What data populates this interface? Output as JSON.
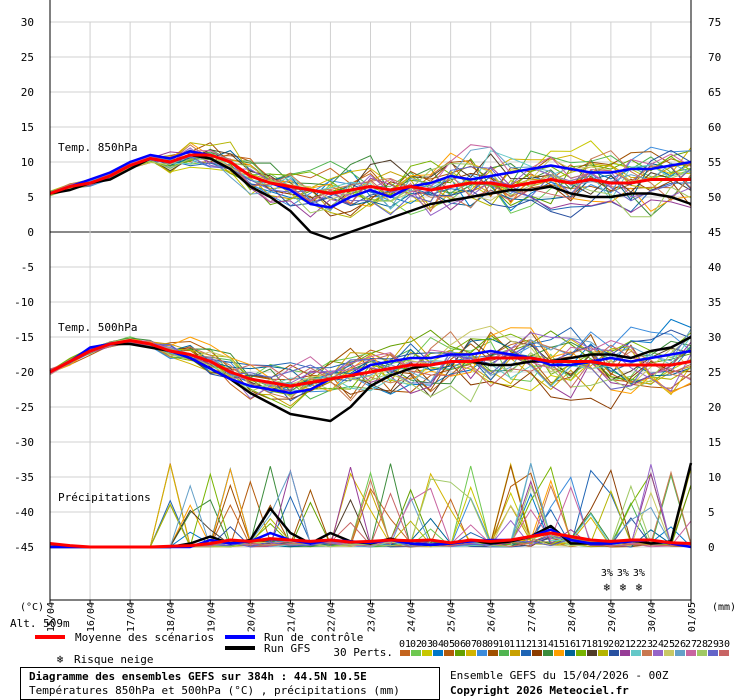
{
  "chart_data": {
    "type": "line",
    "title": "Diagramme des ensembles GEFS sur 384h : 44.5N 10.5E",
    "subtitle": "Températures 850hPa et 500hPa (°C) , précipitations (mm)",
    "left_axis_label": "(°C)",
    "right_axis_label": "(mm)",
    "altitude_label": "Alt. 509m",
    "left_ticks": [
      30,
      25,
      20,
      15,
      10,
      5,
      0,
      -5,
      -10,
      -15,
      -20,
      -25,
      -30,
      -35,
      -40,
      -45
    ],
    "right_ticks": [
      75,
      70,
      65,
      60,
      55,
      50,
      45,
      40,
      35,
      30,
      25,
      20,
      15,
      10,
      5,
      0
    ],
    "ylim": [
      -45,
      30
    ],
    "grid": true,
    "x_ticks": [
      "16/04",
      "17/04",
      "18/04",
      "19/04",
      "20/04",
      "21/04",
      "22/04",
      "23/04",
      "24/04",
      "25/04",
      "26/04",
      "27/04",
      "28/04",
      "29/04",
      "30/04",
      "01/05"
    ],
    "x_start_label": "15/04",
    "panel_labels": {
      "t850": "Temp. 850hPa",
      "t500": "Temp. 500hPa",
      "precip": "Précipitations"
    },
    "series": [
      {
        "name": "Moyenne des scénarios",
        "color": "#ff0000",
        "t850": [
          5.5,
          6.5,
          7.0,
          8.0,
          9.5,
          10.5,
          10.0,
          11.0,
          11.0,
          10.0,
          8.0,
          7.0,
          6.5,
          6.0,
          5.5,
          6.0,
          6.5,
          6.0,
          6.5,
          6.0,
          6.5,
          7.0,
          7.0,
          6.5,
          7.0,
          7.5,
          7.0,
          7.5,
          7.0,
          7.0,
          7.5,
          7.5,
          7.5
        ],
        "t500": [
          -20.0,
          -18.5,
          -17.0,
          -16.0,
          -15.5,
          -16.0,
          -17.0,
          -17.5,
          -18.5,
          -20.0,
          -21.0,
          -21.5,
          -22.0,
          -21.5,
          -21.0,
          -20.5,
          -20.0,
          -19.5,
          -19.0,
          -19.0,
          -18.5,
          -18.5,
          -18.0,
          -18.0,
          -18.0,
          -18.5,
          -18.5,
          -18.5,
          -19.0,
          -19.0,
          -19.0,
          -19.0,
          -18.5
        ],
        "precip": [
          0.5,
          0.2,
          0.0,
          0.0,
          0.0,
          0.0,
          0.1,
          0.2,
          0.5,
          1.0,
          0.8,
          1.2,
          1.0,
          0.8,
          1.0,
          0.7,
          0.8,
          1.0,
          0.9,
          1.0,
          0.6,
          1.0,
          0.8,
          1.0,
          1.5,
          2.0,
          1.5,
          1.0,
          0.8,
          1.0,
          1.0,
          0.6,
          0.5
        ]
      },
      {
        "name": "Run de contrôle",
        "color": "#0000ff",
        "t850": [
          5.5,
          6.5,
          7.5,
          8.5,
          10.0,
          11.0,
          10.5,
          11.5,
          11.0,
          10.0,
          8.0,
          7.0,
          6.0,
          4.0,
          3.5,
          5.0,
          6.0,
          5.0,
          6.5,
          7.0,
          8.0,
          7.5,
          8.0,
          8.5,
          9.0,
          9.5,
          9.0,
          8.5,
          8.5,
          9.0,
          9.0,
          9.5,
          10.0
        ],
        "t500": [
          -20.0,
          -18.5,
          -16.5,
          -16.0,
          -15.5,
          -16.0,
          -17.0,
          -18.0,
          -19.5,
          -21.0,
          -22.0,
          -22.5,
          -23.0,
          -22.5,
          -21.0,
          -20.5,
          -19.0,
          -18.5,
          -18.0,
          -18.0,
          -17.5,
          -17.5,
          -17.0,
          -17.5,
          -18.0,
          -19.0,
          -19.0,
          -18.5,
          -18.0,
          -18.5,
          -18.0,
          -17.5,
          -17.0
        ],
        "precip": [
          0.0,
          0.0,
          0.0,
          0.0,
          0.0,
          0.0,
          0.0,
          0.0,
          1.0,
          0.5,
          0.8,
          2.0,
          1.0,
          0.5,
          1.0,
          0.8,
          0.6,
          1.0,
          0.5,
          0.3,
          0.5,
          0.8,
          1.0,
          1.0,
          1.5,
          2.5,
          1.0,
          0.5,
          0.5,
          0.8,
          1.0,
          0.5,
          0.0
        ]
      },
      {
        "name": "Run GFS",
        "color": "#000000",
        "t850": [
          5.5,
          6.0,
          7.0,
          7.5,
          9.0,
          10.5,
          10.0,
          11.0,
          10.5,
          9.0,
          6.5,
          5.0,
          3.0,
          0.0,
          -1.0,
          0.0,
          1.0,
          2.0,
          3.0,
          4.0,
          4.5,
          5.0,
          5.5,
          6.0,
          6.0,
          6.5,
          5.5,
          5.0,
          5.0,
          5.5,
          5.5,
          5.0,
          4.0
        ],
        "t500": [
          -20.0,
          -18.5,
          -17.0,
          -16.0,
          -16.0,
          -16.5,
          -17.0,
          -18.0,
          -19.5,
          -21.0,
          -23.0,
          -24.5,
          -26.0,
          -26.5,
          -27.0,
          -25.0,
          -22.0,
          -20.5,
          -19.5,
          -19.0,
          -18.5,
          -18.5,
          -19.0,
          -19.0,
          -18.5,
          -18.5,
          -18.0,
          -17.5,
          -17.5,
          -18.0,
          -17.0,
          -16.5,
          -15.0
        ],
        "precip": [
          0.0,
          0.0,
          0.0,
          0.0,
          0.0,
          0.0,
          0.0,
          0.5,
          1.5,
          0.5,
          1.0,
          5.5,
          2.0,
          0.5,
          2.0,
          0.8,
          0.5,
          1.2,
          0.5,
          0.3,
          0.5,
          1.0,
          0.5,
          0.8,
          1.5,
          3.0,
          0.5,
          0.5,
          0.5,
          1.0,
          0.5,
          0.8,
          12.0
        ]
      }
    ],
    "ensemble_member_colors": [
      "#c3641e",
      "#6ec850",
      "#c8c800",
      "#0078c8",
      "#b45a0a",
      "#64a000",
      "#d2b400",
      "#3c8cdc",
      "#a05000",
      "#50b450",
      "#c8a000",
      "#1e64b4",
      "#8c3c00",
      "#3c8c3c",
      "#ffa000",
      "#006496",
      "#78b400",
      "#503c28",
      "#b4b400",
      "#2850a0",
      "#963c96",
      "#64c8c8",
      "#c87850",
      "#9664c8",
      "#c8c864",
      "#64a0c8",
      "#c864a0",
      "#a0c864",
      "#6464c8",
      "#c86464"
    ],
    "perturbations": {
      "label": "30 Perts.",
      "codes": [
        "01",
        "02",
        "03",
        "04",
        "05",
        "06",
        "07",
        "08",
        "09",
        "10",
        "11",
        "12",
        "13",
        "14",
        "15",
        "16",
        "17",
        "18",
        "19",
        "20",
        "21",
        "22",
        "23",
        "24",
        "25",
        "26",
        "27",
        "28",
        "29",
        "30"
      ]
    },
    "snow_risk": {
      "label": "Risque neige",
      "marker_text": "3%",
      "markers_at_x": [
        13.9,
        14.3,
        14.7
      ]
    }
  },
  "footer": {
    "run_label": "Ensemble GEFS du 15/04/2026 - 00Z",
    "copyright": "Copyright 2026 Meteociel.fr"
  }
}
